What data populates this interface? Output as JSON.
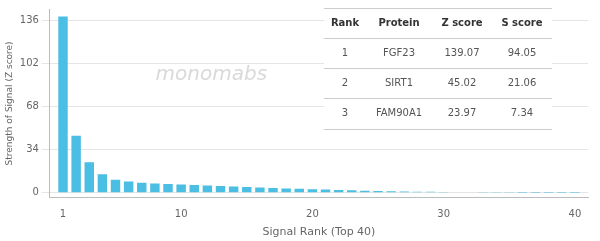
{
  "chart_data": {
    "type": "bar",
    "x": [
      1,
      2,
      3,
      4,
      5,
      6,
      7,
      8,
      9,
      10,
      11,
      12,
      13,
      14,
      15,
      16,
      17,
      18,
      19,
      20,
      21,
      22,
      23,
      24,
      25,
      26,
      27,
      28,
      29,
      30,
      31,
      32,
      33,
      34,
      35,
      36,
      37,
      38,
      39,
      40
    ],
    "values": [
      139.07,
      45.02,
      23.97,
      14.5,
      10.2,
      8.8,
      7.9,
      7.3,
      6.9,
      6.5,
      6.1,
      5.7,
      5.3,
      4.9,
      4.5,
      4.1,
      3.7,
      3.4,
      3.1,
      2.8,
      2.5,
      2.2,
      1.9,
      1.6,
      1.4,
      1.2,
      1.0,
      0.85,
      0.7,
      0.55,
      0.42,
      0.31,
      0.22,
      0.15,
      0.1,
      0.07,
      0.05,
      0.03,
      0.02,
      0.01
    ],
    "color": "#4BBEE3",
    "xlabel": "Signal Rank (Top 40)",
    "ylabel": "Strength of Signal (Z score)",
    "xlim": [
      0,
      41
    ],
    "xticks": [
      1,
      10,
      20,
      30,
      40
    ],
    "ylim": [
      -4,
      145
    ],
    "yticks": [
      0,
      34,
      68,
      102,
      136
    ],
    "grid": true,
    "annotations": [
      {
        "text": "monomabs"
      }
    ],
    "table": {
      "columns": [
        "Rank",
        "Protein",
        "Z score",
        "S score"
      ],
      "rows": [
        [
          "1",
          "FGF23",
          "139.07",
          "94.05"
        ],
        [
          "2",
          "SIRT1",
          "45.02",
          "21.06"
        ],
        [
          "3",
          "FAM90A1",
          "23.97",
          "7.34"
        ]
      ]
    }
  }
}
